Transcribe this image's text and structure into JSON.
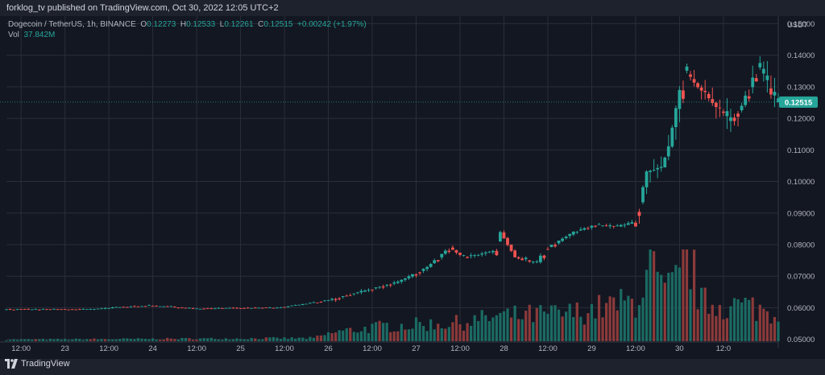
{
  "header": {
    "publish_line": "forklog_tv published on TradingView.com, Oct 30, 2022 12:05 UTC+2"
  },
  "legend": {
    "symbol": "Dogecoin / TetherUS, 1h, BINANCE",
    "o_label": "O",
    "o_value": "0.12273",
    "h_label": "H",
    "h_value": "0.12533",
    "l_label": "L",
    "l_value": "0.12261",
    "c_label": "C",
    "c_value": "0.12515",
    "change": "+0.00242 (+1.97%)",
    "vol_label": "Vol",
    "vol_value": "37.842M"
  },
  "footer": {
    "brand": "TradingView"
  },
  "colors": {
    "up": "#26a69a",
    "down": "#ef5350",
    "up_vol": "#1b6b63",
    "down_vol": "#8c3a3a",
    "grid": "#2a2e39",
    "bg": "#1e222d"
  },
  "chart_data": {
    "type": "candlestick",
    "symbol": "Dogecoin / TetherUS, 1h, BINANCE",
    "y_axis_unit": "USDT",
    "ylim": [
      0.0494,
      0.1524
    ],
    "y_ticks": [
      "0.05000",
      "0.06000",
      "0.07000",
      "0.08000",
      "0.09000",
      "0.10000",
      "0.11000",
      "0.12000",
      "0.13000",
      "0.14000",
      "0.15000"
    ],
    "x_ticks": [
      {
        "label": "12:00",
        "t": 0
      },
      {
        "label": "23",
        "t": 12
      },
      {
        "label": "12:00",
        "t": 24
      },
      {
        "label": "24",
        "t": 36
      },
      {
        "label": "12:00",
        "t": 48
      },
      {
        "label": "25",
        "t": 60
      },
      {
        "label": "12:00",
        "t": 72
      },
      {
        "label": "26",
        "t": 84
      },
      {
        "label": "12:00",
        "t": 96
      },
      {
        "label": "27",
        "t": 108
      },
      {
        "label": "12:00",
        "t": 120
      },
      {
        "label": "28",
        "t": 132
      },
      {
        "label": "12:00",
        "t": 144
      },
      {
        "label": "29",
        "t": 156
      },
      {
        "label": "12:00",
        "t": 168
      },
      {
        "label": "30",
        "t": 180
      },
      {
        "label": "12:0",
        "t": 192
      }
    ],
    "last_price": "0.12515",
    "last_price_value": 0.12515,
    "keypoints": [
      [
        -4,
        0.0595
      ],
      [
        20,
        0.0595
      ],
      [
        28,
        0.0602
      ],
      [
        36,
        0.0607
      ],
      [
        48,
        0.0597
      ],
      [
        72,
        0.0601
      ],
      [
        84,
        0.0622
      ],
      [
        96,
        0.0658
      ],
      [
        104,
        0.0682
      ],
      [
        112,
        0.073
      ],
      [
        118,
        0.079
      ],
      [
        122,
        0.076
      ],
      [
        130,
        0.078
      ],
      [
        132,
        0.084
      ],
      [
        136,
        0.076
      ],
      [
        140,
        0.0745
      ],
      [
        142,
        0.0745
      ],
      [
        144,
        0.0785
      ],
      [
        152,
        0.084
      ],
      [
        158,
        0.0862
      ],
      [
        164,
        0.0858
      ],
      [
        168,
        0.087
      ],
      [
        170,
        0.0935
      ],
      [
        172,
        0.103
      ],
      [
        176,
        0.1045
      ],
      [
        178,
        0.111
      ],
      [
        180,
        0.123
      ],
      [
        182,
        0.135
      ],
      [
        186,
        0.13
      ],
      [
        190,
        0.125
      ],
      [
        194,
        0.119
      ],
      [
        198,
        0.124
      ],
      [
        202,
        0.136
      ],
      [
        204,
        0.132
      ],
      [
        207,
        0.125
      ]
    ],
    "volume_keypoints": [
      [
        -4,
        0.2
      ],
      [
        80,
        0.4
      ],
      [
        86,
        1.2
      ],
      [
        100,
        2.0
      ],
      [
        120,
        2.4
      ],
      [
        130,
        3.2
      ],
      [
        150,
        3.6
      ],
      [
        168,
        5.2
      ],
      [
        172,
        9.5
      ],
      [
        176,
        6.0
      ],
      [
        180,
        8.0
      ],
      [
        182,
        12.0
      ],
      [
        186,
        5.0
      ],
      [
        200,
        4.5
      ],
      [
        207,
        3.5
      ]
    ],
    "volume_max": 12.0
  }
}
